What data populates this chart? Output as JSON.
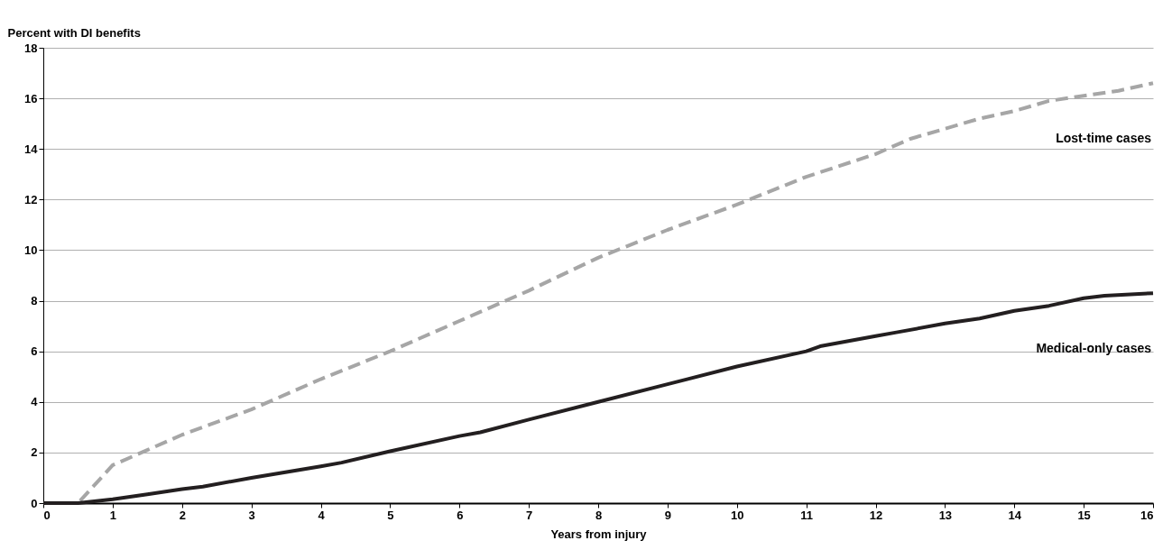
{
  "chart_data": {
    "type": "line",
    "xlabel": "Years from injury",
    "ylabel": "Percent with DI benefits",
    "xlim": [
      0,
      16
    ],
    "xticks": [
      0,
      1,
      2,
      3,
      4,
      5,
      6,
      7,
      8,
      9,
      10,
      11,
      12,
      13,
      14,
      15,
      16
    ],
    "ylim": [
      0,
      18
    ],
    "yticks": [
      0,
      2,
      4,
      6,
      8,
      10,
      12,
      14,
      16,
      18
    ],
    "grid": "y",
    "marker": "none",
    "series": [
      {
        "name": "Lost-time cases",
        "color": "#a6a6a6",
        "line_style": "dashed",
        "x": [
          0,
          0.5,
          1,
          1.5,
          2,
          3,
          4,
          5,
          6,
          7,
          8,
          9,
          10,
          11,
          12,
          12.5,
          13,
          13.5,
          14,
          14.5,
          15,
          15.5,
          16
        ],
        "values": [
          0,
          0,
          1.5,
          2.1,
          2.7,
          3.7,
          4.9,
          6.0,
          7.2,
          8.4,
          9.7,
          10.8,
          11.8,
          12.9,
          13.8,
          14.4,
          14.8,
          15.2,
          15.5,
          15.9,
          16.1,
          16.3,
          16.6
        ]
      },
      {
        "name": "Medical-only cases",
        "color": "#231f20",
        "line_style": "solid",
        "x": [
          0,
          0.5,
          1,
          1.5,
          2,
          2.3,
          3,
          4,
          4.3,
          5,
          6,
          6.3,
          7,
          8,
          9,
          10,
          11,
          11.2,
          12,
          12.3,
          13,
          13.5,
          14,
          14.5,
          15,
          15.3,
          16
        ],
        "values": [
          0,
          0,
          0.15,
          0.35,
          0.55,
          0.65,
          1.0,
          1.45,
          1.6,
          2.05,
          2.65,
          2.8,
          3.3,
          4.0,
          4.7,
          5.4,
          6.0,
          6.2,
          6.6,
          6.75,
          7.1,
          7.3,
          7.6,
          7.8,
          8.1,
          8.2,
          8.3
        ]
      }
    ]
  }
}
